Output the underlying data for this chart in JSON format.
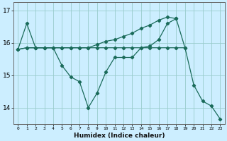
{
  "xlabel": "Humidex (Indice chaleur)",
  "background_color": "#cceeff",
  "grid_color": "#99cccc",
  "line_color": "#1a6b5a",
  "xlim": [
    -0.5,
    23.5
  ],
  "ylim": [
    13.5,
    17.25
  ],
  "yticks": [
    14,
    15,
    16,
    17
  ],
  "xticks": [
    0,
    1,
    2,
    3,
    4,
    5,
    6,
    7,
    8,
    9,
    10,
    11,
    12,
    13,
    14,
    15,
    16,
    17,
    18,
    19,
    20,
    21,
    22,
    23
  ],
  "series": [
    {
      "x": [
        0,
        1,
        2,
        3,
        4,
        5,
        6,
        7,
        8,
        9,
        10,
        11,
        12,
        13,
        14,
        15,
        16,
        17,
        18,
        19,
        20,
        21,
        22,
        23
      ],
      "y": [
        15.8,
        16.6,
        15.85,
        15.85,
        15.85,
        15.3,
        14.95,
        14.8,
        14.0,
        14.45,
        15.1,
        15.55,
        15.55,
        15.55,
        15.85,
        15.9,
        16.1,
        16.6,
        16.75,
        15.85,
        14.7,
        14.2,
        14.05,
        13.65
      ]
    },
    {
      "x": [
        0,
        1,
        2,
        3,
        4,
        5,
        6,
        7,
        8,
        9,
        10,
        11,
        12,
        13,
        14,
        15,
        16,
        17,
        18,
        19
      ],
      "y": [
        15.8,
        15.85,
        15.85,
        15.85,
        15.85,
        15.85,
        15.85,
        15.85,
        15.85,
        15.85,
        15.85,
        15.85,
        15.85,
        15.85,
        15.85,
        15.85,
        15.85,
        15.85,
        15.85,
        15.85
      ]
    },
    {
      "x": [
        0,
        1,
        2,
        3,
        4,
        5,
        6,
        7,
        8,
        9,
        10,
        11,
        12,
        13,
        14,
        15,
        16,
        17,
        18
      ],
      "y": [
        15.8,
        15.85,
        15.85,
        15.85,
        15.85,
        15.85,
        15.85,
        15.85,
        15.85,
        15.95,
        16.05,
        16.1,
        16.2,
        16.3,
        16.45,
        16.55,
        16.7,
        16.8,
        16.75
      ]
    }
  ]
}
